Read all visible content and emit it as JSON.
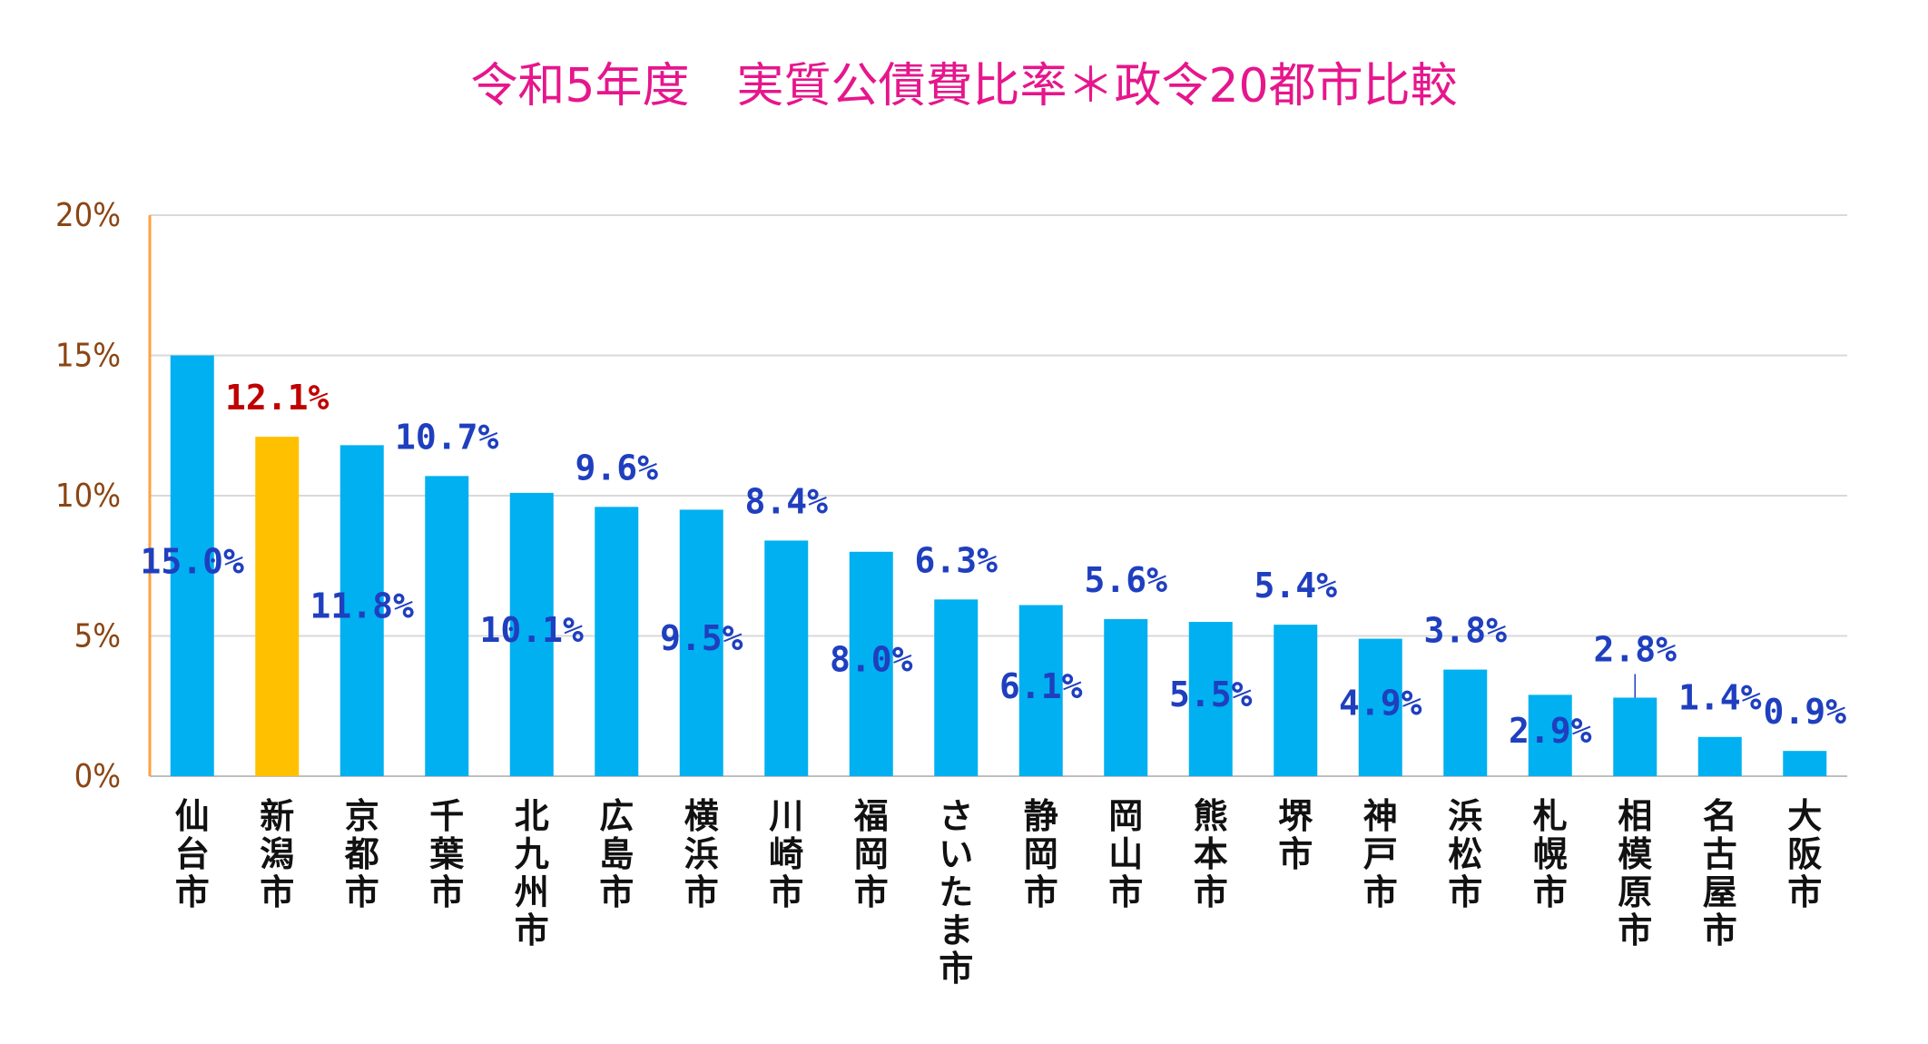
{
  "chart_data": {
    "type": "bar",
    "title": "令和5年度　実質公債費比率＊政令20都市比較",
    "categories": [
      "仙台市",
      "新潟市",
      "京都市",
      "千葉市",
      "北九州市",
      "広島市",
      "横浜市",
      "川崎市",
      "福岡市",
      "さいたま市",
      "静岡市",
      "岡山市",
      "熊本市",
      "堺市",
      "神戸市",
      "浜松市",
      "札幌市",
      "相模原市",
      "名古屋市",
      "大阪市"
    ],
    "values": [
      15.0,
      12.1,
      11.8,
      10.7,
      10.1,
      9.6,
      9.5,
      8.4,
      8.0,
      6.3,
      6.1,
      5.6,
      5.5,
      5.4,
      4.9,
      3.8,
      2.9,
      2.8,
      1.4,
      0.9
    ],
    "data_labels": [
      "15.0%",
      "12.1%",
      "11.8%",
      "10.7%",
      "10.1%",
      "9.6%",
      "9.5%",
      "8.4%",
      "8.0%",
      "6.3%",
      "6.1%",
      "5.6%",
      "5.5%",
      "5.4%",
      "4.9%",
      "3.8%",
      "2.9%",
      "2.8%",
      "1.4%",
      "0.9%"
    ],
    "highlight_category": "新潟市",
    "y_ticks": [
      "0%",
      "5%",
      "10%",
      "15%",
      "20%"
    ],
    "ylim": [
      0,
      20
    ],
    "grid": true,
    "legend": "none",
    "colors": {
      "bar": "#00b0f0",
      "highlight_bar": "#ffc000",
      "data_label": "#1f3fbf",
      "highlight_label": "#c00000",
      "title": "#e6168c",
      "tick_label": "#8b4513",
      "y_axis_line": "#ffa040",
      "grid": "#d9d9d9"
    }
  }
}
